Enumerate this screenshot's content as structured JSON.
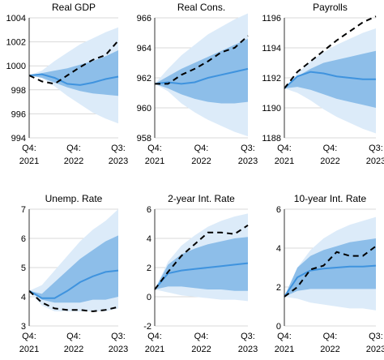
{
  "chart_data": [
    {
      "type": "area",
      "title": "Real GDP",
      "ylim": [
        994,
        1004
      ],
      "yticks": [
        "994",
        "996",
        "998",
        "1000",
        "1002",
        "1004"
      ],
      "xtick_labels": [
        [
          "Q4:",
          "2021"
        ],
        [
          "Q4:",
          "2022"
        ],
        [
          "Q3:",
          "2023"
        ]
      ],
      "grid": true,
      "x": [
        0,
        1,
        2,
        3,
        4,
        5,
        6,
        7
      ],
      "series": [
        {
          "role": "outer_low",
          "values": [
            999.2,
            999.0,
            998.3,
            997.5,
            996.8,
            996.1,
            995.6,
            995.2
          ]
        },
        {
          "role": "outer_high",
          "values": [
            999.2,
            999.6,
            1000.4,
            1001.1,
            1001.8,
            1002.3,
            1002.8,
            1003.2
          ]
        },
        {
          "role": "inner_low",
          "values": [
            999.2,
            999.0,
            998.6,
            998.2,
            997.9,
            997.7,
            997.6,
            997.5
          ]
        },
        {
          "role": "inner_high",
          "values": [
            999.2,
            999.4,
            999.6,
            999.8,
            1000.1,
            1000.4,
            1000.8,
            1001.3
          ]
        },
        {
          "role": "median",
          "values": [
            999.2,
            999.3,
            999.0,
            998.5,
            998.4,
            998.6,
            998.9,
            999.1
          ]
        },
        {
          "role": "actual",
          "values": [
            999.2,
            998.7,
            998.5,
            999.2,
            999.9,
            1000.5,
            1000.9,
            1002.1
          ]
        }
      ]
    },
    {
      "type": "area",
      "title": "Real Cons.",
      "ylim": [
        958,
        966
      ],
      "yticks": [
        "958",
        "960",
        "962",
        "964",
        "966"
      ],
      "xtick_labels": [
        [
          "Q4:",
          "2021"
        ],
        [
          "Q4:",
          "2022"
        ],
        [
          "Q3:",
          "2023"
        ]
      ],
      "grid": true,
      "x": [
        0,
        1,
        2,
        3,
        4,
        5,
        6,
        7
      ],
      "series": [
        {
          "role": "outer_low",
          "values": [
            961.6,
            961.1,
            960.3,
            959.7,
            959.2,
            958.8,
            958.4,
            958.1
          ]
        },
        {
          "role": "outer_high",
          "values": [
            961.6,
            962.6,
            963.5,
            964.2,
            964.9,
            965.4,
            965.9,
            966.3
          ]
        },
        {
          "role": "inner_low",
          "values": [
            961.6,
            961.3,
            960.9,
            960.6,
            960.4,
            960.3,
            960.3,
            960.4
          ]
        },
        {
          "role": "inner_high",
          "values": [
            961.6,
            962.1,
            962.6,
            963.0,
            963.4,
            963.8,
            964.2,
            964.6
          ]
        },
        {
          "role": "median",
          "values": [
            961.6,
            961.7,
            961.6,
            961.7,
            962.0,
            962.2,
            962.4,
            962.6
          ]
        },
        {
          "role": "actual",
          "values": [
            961.6,
            961.6,
            962.2,
            962.6,
            963.1,
            963.7,
            964.0,
            964.8
          ]
        }
      ]
    },
    {
      "type": "area",
      "title": "Payrolls",
      "ylim": [
        1188,
        1196
      ],
      "yticks": [
        "1188",
        "1190",
        "1192",
        "1194",
        "1196"
      ],
      "xtick_labels": [
        [
          "Q4:",
          "2021"
        ],
        [
          "Q4:",
          "2022"
        ],
        [
          "Q3:",
          "2023"
        ]
      ],
      "grid": true,
      "x": [
        0,
        1,
        2,
        3,
        4,
        5,
        6,
        7
      ],
      "series": [
        {
          "role": "outer_low",
          "values": [
            1191.3,
            1191.0,
            1190.5,
            1189.9,
            1189.4,
            1189.0,
            1188.6,
            1188.3
          ]
        },
        {
          "role": "outer_high",
          "values": [
            1191.3,
            1192.3,
            1193.1,
            1193.7,
            1194.2,
            1194.6,
            1195.0,
            1195.3
          ]
        },
        {
          "role": "inner_low",
          "values": [
            1191.3,
            1191.4,
            1191.2,
            1190.9,
            1190.6,
            1190.4,
            1190.2,
            1190.0
          ]
        },
        {
          "role": "inner_high",
          "values": [
            1191.3,
            1192.1,
            1192.6,
            1193.0,
            1193.2,
            1193.4,
            1193.6,
            1193.8
          ]
        },
        {
          "role": "median",
          "values": [
            1191.3,
            1192.1,
            1192.4,
            1192.3,
            1192.1,
            1192.0,
            1191.9,
            1191.9
          ]
        },
        {
          "role": "actual",
          "values": [
            1191.3,
            1192.4,
            1193.1,
            1193.8,
            1194.5,
            1195.1,
            1195.7,
            1196.1
          ]
        }
      ]
    },
    {
      "type": "area",
      "title": "Unemp. Rate",
      "ylim": [
        3,
        7
      ],
      "yticks": [
        "3",
        "4",
        "5",
        "6",
        "7"
      ],
      "xtick_labels": [
        [
          "Q4:",
          "2021"
        ],
        [
          "Q4:",
          "2022"
        ],
        [
          "Q3:",
          "2023"
        ]
      ],
      "grid": true,
      "x": [
        0,
        1,
        2,
        3,
        4,
        5,
        6,
        7
      ],
      "series": [
        {
          "role": "outer_low",
          "values": [
            4.2,
            3.7,
            3.5,
            3.5,
            3.5,
            3.5,
            3.5,
            3.6
          ]
        },
        {
          "role": "outer_high",
          "values": [
            4.2,
            4.4,
            4.9,
            5.4,
            5.9,
            6.3,
            6.6,
            7.0
          ]
        },
        {
          "role": "inner_low",
          "values": [
            4.2,
            3.9,
            3.8,
            3.8,
            3.8,
            3.9,
            3.9,
            4.0
          ]
        },
        {
          "role": "inner_high",
          "values": [
            4.2,
            4.1,
            4.5,
            4.9,
            5.3,
            5.6,
            5.9,
            6.1
          ]
        },
        {
          "role": "median",
          "values": [
            4.2,
            3.95,
            3.95,
            4.2,
            4.5,
            4.7,
            4.85,
            4.9
          ]
        },
        {
          "role": "actual",
          "values": [
            4.2,
            3.8,
            3.6,
            3.55,
            3.55,
            3.5,
            3.55,
            3.65
          ]
        }
      ]
    },
    {
      "type": "area",
      "title": "2-year Int. Rate",
      "ylim": [
        -2,
        6
      ],
      "yticks": [
        "-2",
        "0",
        "2",
        "4",
        "6"
      ],
      "xtick_labels": [
        [
          "Q4:",
          "2021"
        ],
        [
          "Q4:",
          "2022"
        ],
        [
          "Q3:",
          "2023"
        ]
      ],
      "grid": true,
      "x": [
        0,
        1,
        2,
        3,
        4,
        5,
        6,
        7
      ],
      "series": [
        {
          "role": "outer_low",
          "values": [
            0.5,
            0.3,
            0.1,
            0.0,
            -0.1,
            -0.2,
            -0.2,
            -0.3
          ]
        },
        {
          "role": "outer_high",
          "values": [
            0.5,
            2.4,
            3.5,
            4.2,
            4.8,
            5.2,
            5.5,
            5.7
          ]
        },
        {
          "role": "inner_low",
          "values": [
            0.5,
            0.7,
            0.7,
            0.6,
            0.5,
            0.5,
            0.4,
            0.4
          ]
        },
        {
          "role": "inner_high",
          "values": [
            0.5,
            2.2,
            2.9,
            3.3,
            3.6,
            3.8,
            4.0,
            4.1
          ]
        },
        {
          "role": "median",
          "values": [
            0.5,
            1.6,
            1.8,
            1.9,
            2.0,
            2.1,
            2.2,
            2.3
          ]
        },
        {
          "role": "actual",
          "values": [
            0.5,
            1.7,
            2.8,
            3.6,
            4.4,
            4.4,
            4.3,
            4.9
          ]
        }
      ]
    },
    {
      "type": "area",
      "title": "10-year Int. Rate",
      "ylim": [
        0,
        6
      ],
      "yticks": [
        "0",
        "2",
        "4",
        "6"
      ],
      "xtick_labels": [
        [
          "Q4:",
          "2021"
        ],
        [
          "Q4:",
          "2022"
        ],
        [
          "Q3:",
          "2023"
        ]
      ],
      "grid": true,
      "x": [
        0,
        1,
        2,
        3,
        4,
        5,
        6,
        7
      ],
      "series": [
        {
          "role": "outer_low",
          "values": [
            1.5,
            1.4,
            1.2,
            1.1,
            1.0,
            0.9,
            0.9,
            0.8
          ]
        },
        {
          "role": "outer_high",
          "values": [
            1.5,
            3.0,
            3.9,
            4.5,
            4.9,
            5.2,
            5.4,
            5.6
          ]
        },
        {
          "role": "inner_low",
          "values": [
            1.5,
            1.8,
            1.9,
            1.9,
            1.9,
            1.9,
            1.9,
            1.9
          ]
        },
        {
          "role": "inner_high",
          "values": [
            1.5,
            3.0,
            3.6,
            3.9,
            4.1,
            4.3,
            4.4,
            4.5
          ]
        },
        {
          "role": "median",
          "values": [
            1.5,
            2.5,
            2.85,
            2.95,
            3.0,
            3.05,
            3.05,
            3.1
          ]
        },
        {
          "role": "actual",
          "values": [
            1.5,
            2.0,
            2.9,
            3.1,
            3.8,
            3.6,
            3.6,
            4.1
          ]
        }
      ]
    }
  ]
}
